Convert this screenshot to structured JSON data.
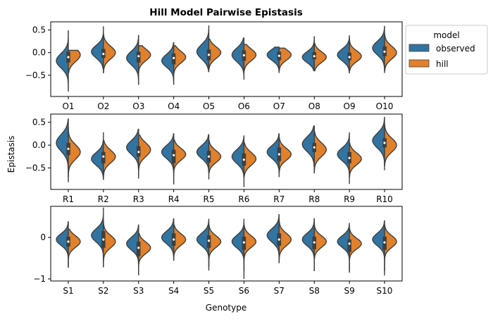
{
  "chart_data": {
    "type": "violin",
    "title": "Hill Model Pairwise Epistasis",
    "xlabel": "Genotype",
    "ylabel": "Epistasis",
    "legend": {
      "title": "model",
      "placement": "outside-top-right",
      "entries": [
        {
          "label": "observed",
          "color": "#3274a1"
        },
        {
          "label": "hill",
          "color": "#e1812c"
        }
      ]
    },
    "colors": {
      "observed": "#3274a1",
      "hill": "#e1812c",
      "outline": "#3f3f3f",
      "box": "#3f3f3f",
      "median": "#ffffff"
    },
    "panels": [
      {
        "categories": [
          "O1",
          "O2",
          "O3",
          "O4",
          "O5",
          "O6",
          "O7",
          "O8",
          "O9",
          "O10"
        ],
        "ylim": [
          -0.97,
          0.68
        ],
        "yticks": [
          -0.5,
          0.0,
          0.5
        ],
        "ytick_labels": [
          "−0.5",
          "0.0",
          "0.5"
        ],
        "series": {
          "observed": [
            {
              "min": -0.85,
              "max": 0.48,
              "median": -0.1,
              "q1": -0.22,
              "q3": 0.02,
              "mode": -0.18,
              "spread": 0.16
            },
            {
              "min": -0.35,
              "max": 0.58,
              "median": -0.03,
              "q1": -0.12,
              "q3": 0.08,
              "mode": 0.02,
              "spread": 0.14
            },
            {
              "min": -0.7,
              "max": 0.38,
              "median": -0.08,
              "q1": -0.22,
              "q3": 0.02,
              "mode": -0.12,
              "spread": 0.15
            },
            {
              "min": -0.7,
              "max": 0.22,
              "median": -0.12,
              "q1": -0.26,
              "q3": -0.02,
              "mode": -0.18,
              "spread": 0.14
            },
            {
              "min": -0.42,
              "max": 0.6,
              "median": -0.05,
              "q1": -0.17,
              "q3": 0.07,
              "mode": 0.02,
              "spread": 0.16
            },
            {
              "min": -0.6,
              "max": 0.32,
              "median": -0.06,
              "q1": -0.18,
              "q3": 0.05,
              "mode": -0.05,
              "spread": 0.15
            },
            {
              "min": -0.45,
              "max": 0.12,
              "median": -0.07,
              "q1": -0.17,
              "q3": 0.02,
              "mode": -0.05,
              "spread": 0.12
            },
            {
              "min": -0.4,
              "max": 0.35,
              "median": -0.08,
              "q1": -0.15,
              "q3": 0.01,
              "mode": -0.1,
              "spread": 0.12
            },
            {
              "min": -0.45,
              "max": 0.38,
              "median": -0.1,
              "q1": -0.17,
              "q3": 0.0,
              "mode": -0.05,
              "spread": 0.13
            },
            {
              "min": -0.45,
              "max": 0.58,
              "median": 0.02,
              "q1": -0.08,
              "q3": 0.14,
              "mode": 0.1,
              "spread": 0.15
            }
          ],
          "hill": [
            {
              "min": -0.45,
              "max": 0.05,
              "median": -0.1,
              "q1": -0.22,
              "q3": 0.02,
              "mode": -0.05,
              "spread": 0.15
            },
            {
              "min": -0.45,
              "max": 0.4,
              "median": -0.03,
              "q1": -0.12,
              "q3": 0.08,
              "mode": 0.0,
              "spread": 0.14
            },
            {
              "min": -0.45,
              "max": 0.15,
              "median": -0.08,
              "q1": -0.22,
              "q3": 0.02,
              "mode": -0.05,
              "spread": 0.13
            },
            {
              "min": -0.45,
              "max": 0.15,
              "median": -0.12,
              "q1": -0.26,
              "q3": -0.02,
              "mode": -0.1,
              "spread": 0.13
            },
            {
              "min": -0.35,
              "max": 0.3,
              "median": -0.05,
              "q1": -0.17,
              "q3": 0.07,
              "mode": 0.0,
              "spread": 0.13
            },
            {
              "min": -0.4,
              "max": 0.18,
              "median": -0.06,
              "q1": -0.18,
              "q3": 0.05,
              "mode": -0.05,
              "spread": 0.13
            },
            {
              "min": -0.4,
              "max": 0.1,
              "median": -0.07,
              "q1": -0.17,
              "q3": 0.02,
              "mode": -0.05,
              "spread": 0.12
            },
            {
              "min": -0.4,
              "max": 0.2,
              "median": -0.08,
              "q1": -0.15,
              "q3": 0.01,
              "mode": -0.1,
              "spread": 0.12
            },
            {
              "min": -0.4,
              "max": 0.3,
              "median": -0.1,
              "q1": -0.17,
              "q3": 0.0,
              "mode": -0.08,
              "spread": 0.12
            },
            {
              "min": -0.4,
              "max": 0.4,
              "median": 0.02,
              "q1": -0.08,
              "q3": 0.14,
              "mode": 0.0,
              "spread": 0.14
            }
          ]
        }
      },
      {
        "categories": [
          "R1",
          "R2",
          "R3",
          "R4",
          "R5",
          "R6",
          "R7",
          "R8",
          "R9",
          "R10"
        ],
        "ylim": [
          -0.97,
          0.68
        ],
        "yticks": [
          -0.5,
          0.0,
          0.5
        ],
        "ytick_labels": [
          "−0.5",
          "0.0",
          "0.5"
        ],
        "series": {
          "observed": [
            {
              "min": -0.8,
              "max": 0.57,
              "median": -0.08,
              "q1": -0.22,
              "q3": 0.05,
              "mode": 0.05,
              "spread": 0.18
            },
            {
              "min": -0.75,
              "max": 0.28,
              "median": -0.25,
              "q1": -0.4,
              "q3": -0.15,
              "mode": -0.3,
              "spread": 0.14
            },
            {
              "min": -0.72,
              "max": 0.35,
              "median": -0.15,
              "q1": -0.25,
              "q3": -0.02,
              "mode": -0.05,
              "spread": 0.15
            },
            {
              "min": -0.85,
              "max": 0.25,
              "median": -0.22,
              "q1": -0.4,
              "q3": -0.1,
              "mode": -0.15,
              "spread": 0.14
            },
            {
              "min": -0.75,
              "max": 0.23,
              "median": -0.25,
              "q1": -0.38,
              "q3": -0.12,
              "mode": -0.15,
              "spread": 0.14
            },
            {
              "min": -0.92,
              "max": 0.2,
              "median": -0.32,
              "q1": -0.45,
              "q3": -0.18,
              "mode": -0.25,
              "spread": 0.15
            },
            {
              "min": -0.7,
              "max": 0.25,
              "median": -0.2,
              "q1": -0.35,
              "q3": -0.05,
              "mode": -0.15,
              "spread": 0.14
            },
            {
              "min": -0.6,
              "max": 0.42,
              "median": -0.05,
              "q1": -0.15,
              "q3": 0.05,
              "mode": 0.02,
              "spread": 0.16
            },
            {
              "min": -0.85,
              "max": 0.28,
              "median": -0.28,
              "q1": -0.4,
              "q3": -0.15,
              "mode": -0.2,
              "spread": 0.14
            },
            {
              "min": -0.55,
              "max": 0.62,
              "median": 0.05,
              "q1": -0.05,
              "q3": 0.15,
              "mode": 0.1,
              "spread": 0.16
            }
          ],
          "hill": [
            {
              "min": -0.7,
              "max": 0.4,
              "median": -0.08,
              "q1": -0.22,
              "q3": 0.05,
              "mode": -0.15,
              "spread": 0.16
            },
            {
              "min": -0.75,
              "max": 0.1,
              "median": -0.25,
              "q1": -0.4,
              "q3": -0.15,
              "mode": -0.25,
              "spread": 0.14
            },
            {
              "min": -0.6,
              "max": 0.22,
              "median": -0.15,
              "q1": -0.25,
              "q3": -0.02,
              "mode": -0.1,
              "spread": 0.15
            },
            {
              "min": -0.7,
              "max": 0.12,
              "median": -0.22,
              "q1": -0.4,
              "q3": -0.1,
              "mode": -0.2,
              "spread": 0.13
            },
            {
              "min": -0.6,
              "max": 0.1,
              "median": -0.25,
              "q1": -0.38,
              "q3": -0.12,
              "mode": -0.25,
              "spread": 0.13
            },
            {
              "min": -0.7,
              "max": 0.05,
              "median": -0.32,
              "q1": -0.45,
              "q3": -0.18,
              "mode": -0.3,
              "spread": 0.14
            },
            {
              "min": -0.6,
              "max": 0.15,
              "median": -0.2,
              "q1": -0.35,
              "q3": -0.05,
              "mode": -0.2,
              "spread": 0.13
            },
            {
              "min": -0.62,
              "max": 0.3,
              "median": -0.05,
              "q1": -0.15,
              "q3": 0.05,
              "mode": -0.1,
              "spread": 0.15
            },
            {
              "min": -0.7,
              "max": 0.05,
              "median": -0.28,
              "q1": -0.4,
              "q3": -0.15,
              "mode": -0.3,
              "spread": 0.13
            },
            {
              "min": -0.45,
              "max": 0.45,
              "median": 0.05,
              "q1": -0.05,
              "q3": 0.15,
              "mode": 0.0,
              "spread": 0.15
            }
          ]
        }
      },
      {
        "categories": [
          "S1",
          "S2",
          "S3",
          "S4",
          "S5",
          "S6",
          "S7",
          "S8",
          "S9",
          "S10"
        ],
        "ylim": [
          -1.05,
          0.75
        ],
        "yticks": [
          -1,
          0
        ],
        "ytick_labels": [
          "−1",
          "0"
        ],
        "series": {
          "observed": [
            {
              "min": -0.72,
              "max": 0.38,
              "median": -0.1,
              "q1": -0.22,
              "q3": 0.02,
              "mode": -0.05,
              "spread": 0.14
            },
            {
              "min": -0.72,
              "max": 0.72,
              "median": -0.05,
              "q1": -0.25,
              "q3": 0.15,
              "mode": 0.05,
              "spread": 0.16
            },
            {
              "min": -0.9,
              "max": 0.3,
              "median": -0.25,
              "q1": -0.45,
              "q3": -0.1,
              "mode": -0.15,
              "spread": 0.15
            },
            {
              "min": -0.55,
              "max": 0.45,
              "median": -0.05,
              "q1": -0.2,
              "q3": 0.1,
              "mode": 0.0,
              "spread": 0.15
            },
            {
              "min": -0.8,
              "max": 0.45,
              "median": -0.08,
              "q1": -0.25,
              "q3": 0.05,
              "mode": -0.05,
              "spread": 0.15
            },
            {
              "min": -1.0,
              "max": 0.45,
              "median": -0.12,
              "q1": -0.3,
              "q3": 0.02,
              "mode": -0.1,
              "spread": 0.15
            },
            {
              "min": -0.62,
              "max": 0.55,
              "median": -0.05,
              "q1": -0.2,
              "q3": 0.1,
              "mode": 0.05,
              "spread": 0.16
            },
            {
              "min": -0.8,
              "max": 0.45,
              "median": -0.12,
              "q1": -0.28,
              "q3": 0.02,
              "mode": -0.05,
              "spread": 0.15
            },
            {
              "min": -0.85,
              "max": 0.35,
              "median": -0.15,
              "q1": -0.35,
              "q3": -0.05,
              "mode": -0.1,
              "spread": 0.14
            },
            {
              "min": -0.92,
              "max": 0.4,
              "median": -0.12,
              "q1": -0.3,
              "q3": 0.02,
              "mode": -0.05,
              "spread": 0.15
            }
          ],
          "hill": [
            {
              "min": -0.7,
              "max": 0.2,
              "median": -0.1,
              "q1": -0.22,
              "q3": 0.02,
              "mode": -0.1,
              "spread": 0.14
            },
            {
              "min": -0.7,
              "max": 0.4,
              "median": -0.05,
              "q1": -0.25,
              "q3": 0.15,
              "mode": -0.1,
              "spread": 0.15
            },
            {
              "min": -0.8,
              "max": 0.1,
              "median": -0.25,
              "q1": -0.45,
              "q3": -0.1,
              "mode": -0.25,
              "spread": 0.14
            },
            {
              "min": -0.55,
              "max": 0.3,
              "median": -0.05,
              "q1": -0.2,
              "q3": 0.1,
              "mode": -0.05,
              "spread": 0.14
            },
            {
              "min": -0.7,
              "max": 0.3,
              "median": -0.08,
              "q1": -0.25,
              "q3": 0.05,
              "mode": -0.1,
              "spread": 0.14
            },
            {
              "min": -0.8,
              "max": 0.3,
              "median": -0.12,
              "q1": -0.3,
              "q3": 0.02,
              "mode": -0.1,
              "spread": 0.14
            },
            {
              "min": -0.6,
              "max": 0.4,
              "median": -0.05,
              "q1": -0.2,
              "q3": 0.1,
              "mode": -0.05,
              "spread": 0.15
            },
            {
              "min": -0.7,
              "max": 0.3,
              "median": -0.12,
              "q1": -0.28,
              "q3": 0.02,
              "mode": -0.1,
              "spread": 0.14
            },
            {
              "min": -0.8,
              "max": 0.2,
              "median": -0.15,
              "q1": -0.35,
              "q3": -0.05,
              "mode": -0.15,
              "spread": 0.13
            },
            {
              "min": -0.8,
              "max": 0.3,
              "median": -0.12,
              "q1": -0.3,
              "q3": 0.02,
              "mode": -0.1,
              "spread": 0.14
            }
          ]
        }
      }
    ]
  }
}
